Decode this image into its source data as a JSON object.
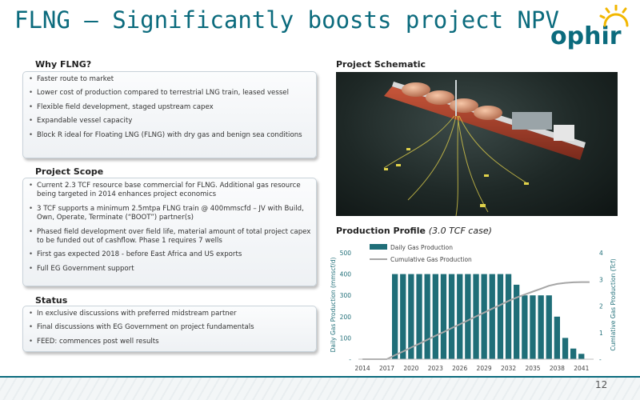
{
  "title": "FLNG – Significantly boosts project NPV",
  "logo_text": "ophir",
  "page_number": "12",
  "why": {
    "heading": "Why FLNG?",
    "items": [
      "Faster route to market",
      "Lower cost of production compared to terrestrial LNG train, leased vessel",
      "Flexible field development, staged upstream capex",
      "Expandable vessel capacity",
      "Block R ideal for Floating LNG (FLNG) with dry gas and benign sea conditions"
    ]
  },
  "scope": {
    "heading": "Project Scope",
    "items": [
      "Current 2.3 TCF resource base commercial for FLNG. Additional gas resource being targeted in 2014 enhances project economics",
      "3 TCF supports a minimum 2.5mtpa FLNG train @ 400mmscfd – JV with Build, Own, Operate, Terminate (“BOOT”) partner(s)",
      "Phased field development over field life, material amount of total project capex to be funded out of cashflow. Phase 1 requires 7 wells",
      "First gas  expected 2018 - before East Africa and US exports",
      "Full EG Government support"
    ]
  },
  "status": {
    "heading": "Status",
    "items": [
      "In exclusive discussions with preferred midstream partner",
      "Final discussions with EG Government on project fundamentals",
      "FEED: commences post well results"
    ]
  },
  "schematic": {
    "heading": "Project Schematic"
  },
  "production": {
    "heading": "Production Profile",
    "subheading": "(3.0 TCF case)"
  },
  "colors": {
    "brand": "#0b6b7d",
    "bar": "#1f6e78",
    "line": "#a6a6a6"
  },
  "chart_data": {
    "type": "bar",
    "x": [
      2014,
      2015,
      2016,
      2017,
      2018,
      2019,
      2020,
      2021,
      2022,
      2023,
      2024,
      2025,
      2026,
      2027,
      2028,
      2029,
      2030,
      2031,
      2032,
      2033,
      2034,
      2035,
      2036,
      2037,
      2038,
      2039,
      2040,
      2041,
      2042
    ],
    "x_tick_labels": [
      "2014",
      "2017",
      "2020",
      "2023",
      "2026",
      "2029",
      "2032",
      "2035",
      "2038",
      "2041"
    ],
    "series": [
      {
        "name": "Daily Gas Production",
        "type": "bar",
        "axis": "left",
        "values": [
          0,
          0,
          0,
          0,
          400,
          400,
          400,
          400,
          400,
          400,
          400,
          400,
          400,
          400,
          400,
          400,
          400,
          400,
          400,
          350,
          300,
          300,
          300,
          300,
          200,
          100,
          50,
          25,
          0
        ]
      },
      {
        "name": "Cumulative Gas Production",
        "type": "line",
        "axis": "right",
        "values": [
          0,
          0,
          0,
          0,
          0.15,
          0.29,
          0.44,
          0.58,
          0.73,
          0.88,
          1.02,
          1.17,
          1.31,
          1.46,
          1.61,
          1.75,
          1.9,
          2.04,
          2.19,
          2.32,
          2.43,
          2.54,
          2.65,
          2.76,
          2.83,
          2.87,
          2.89,
          2.9,
          2.9
        ]
      }
    ],
    "ylabel_left": "Daily Gas Production (mmscf/d)",
    "ylabel_right": "Cumlative Gas Production (Tcf)",
    "ylim_left": [
      0,
      500
    ],
    "ylim_right": [
      0,
      4
    ],
    "yticks_left": [
      "500",
      "400",
      "300",
      "200",
      "100",
      "-"
    ],
    "yticks_right": [
      "4",
      "3",
      "2",
      "1",
      "-"
    ],
    "legend": "top-left",
    "grid": false
  }
}
